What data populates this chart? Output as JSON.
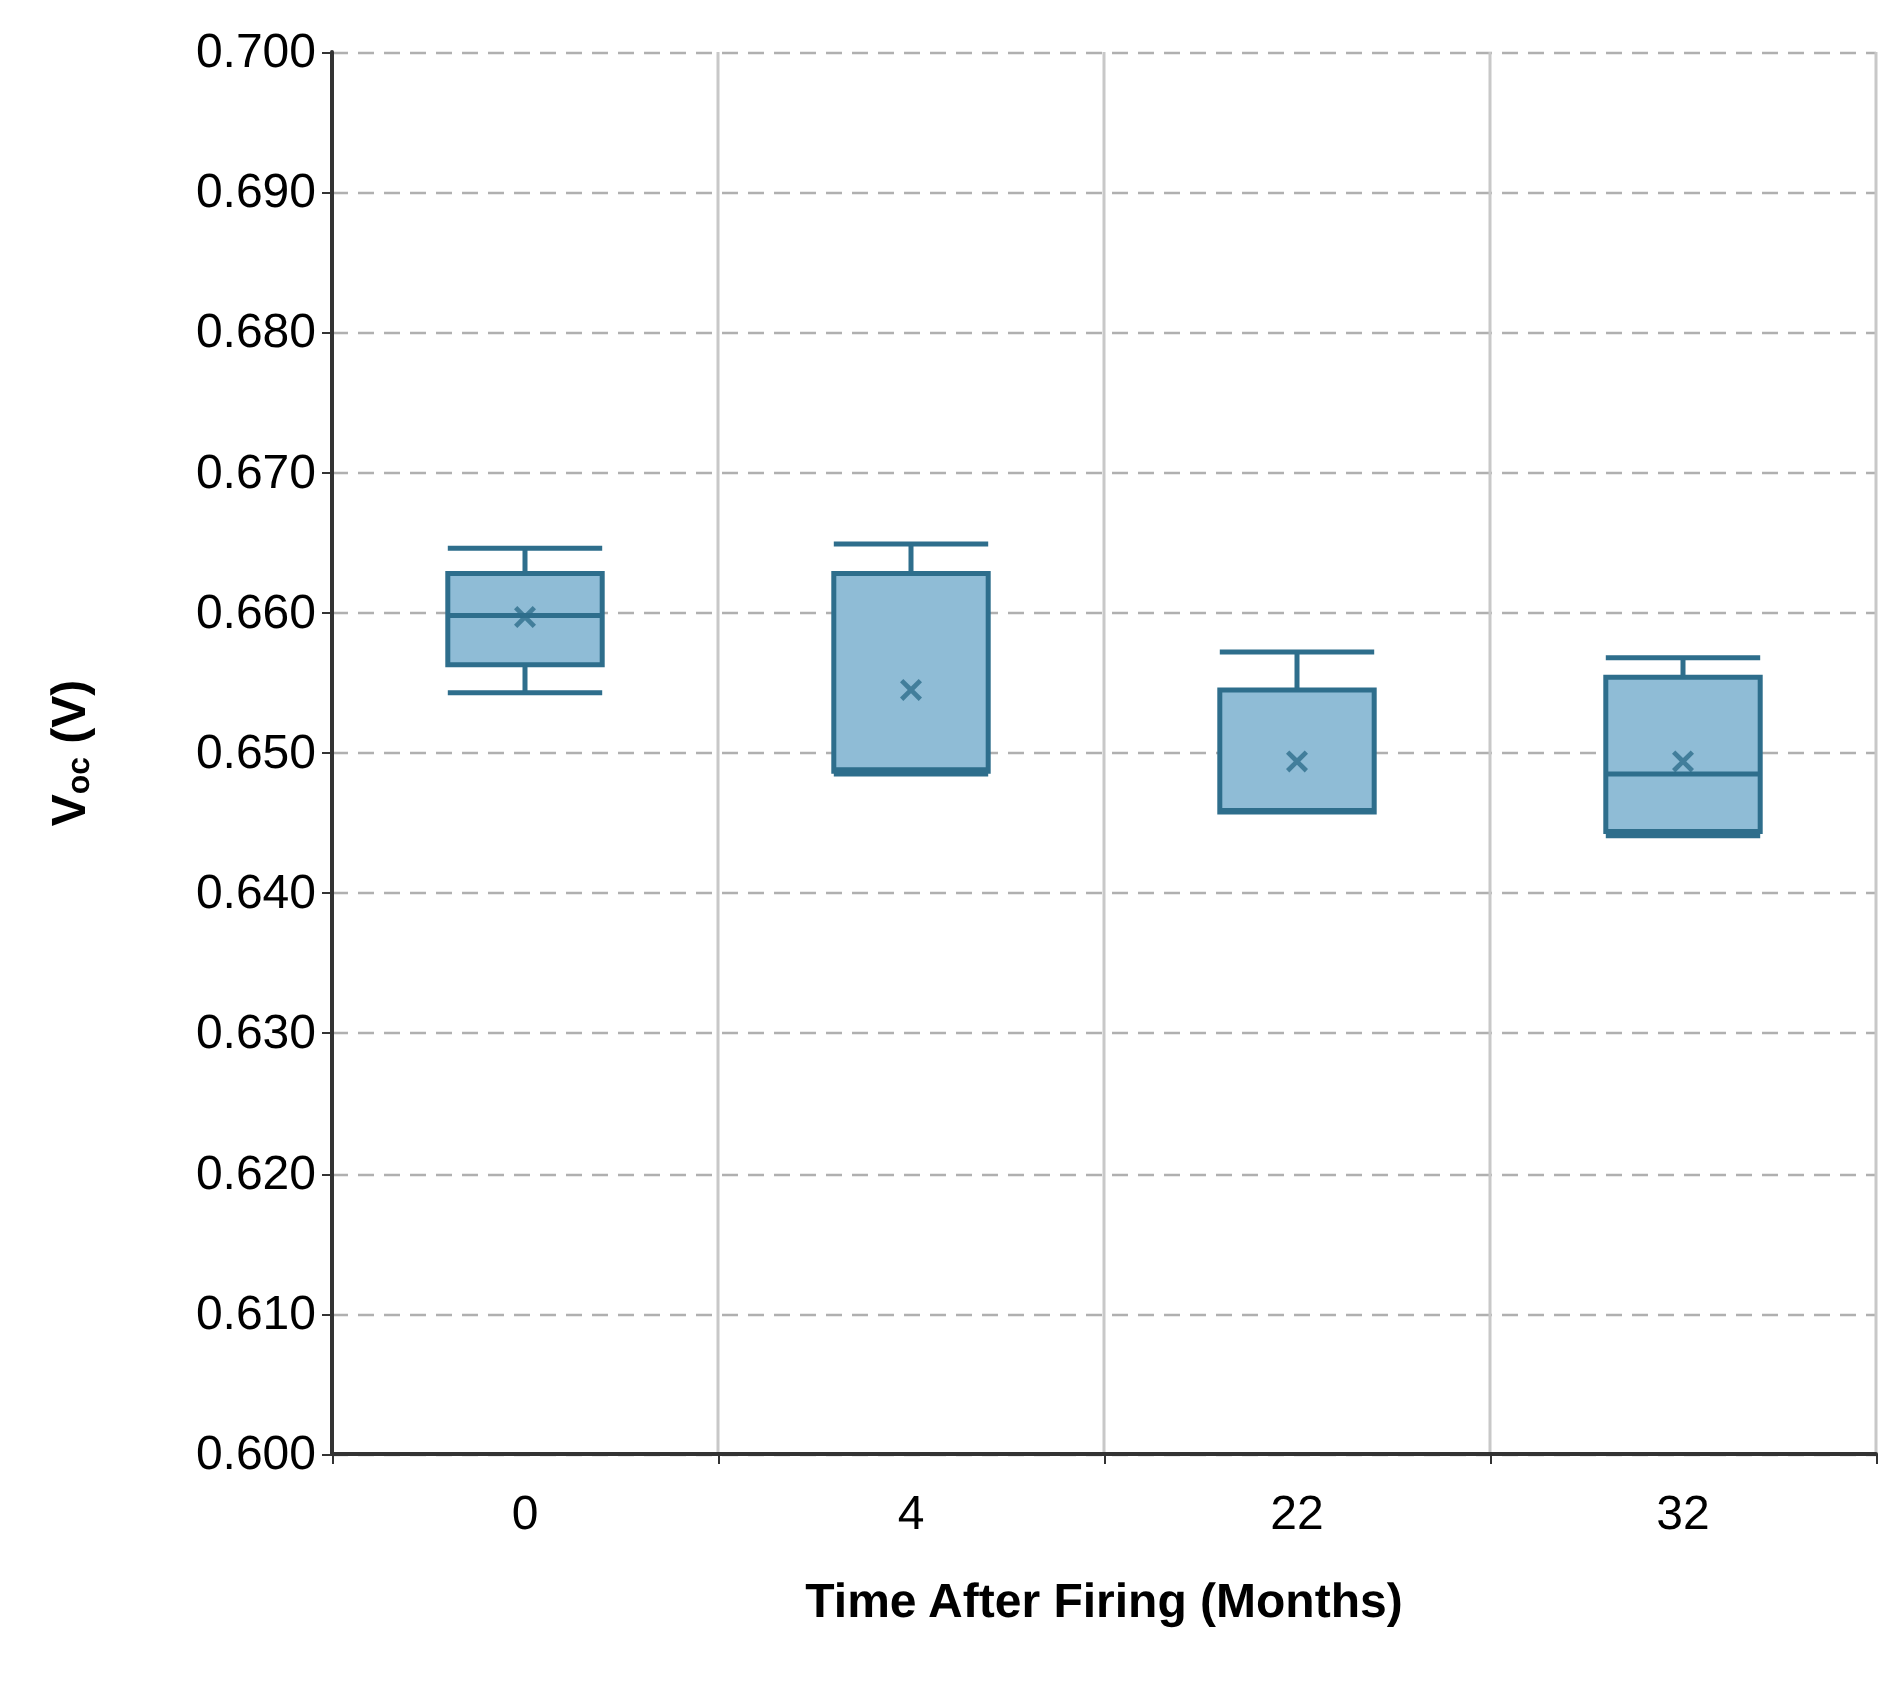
{
  "chart_data": {
    "type": "box",
    "xlabel": "Time After Firing (Months)",
    "ylabel": "V$_{oc}$ (V)",
    "categories": [
      "0",
      "4",
      "22",
      "32"
    ],
    "boxes": [
      {
        "low": 0.6543,
        "q1": 0.6563,
        "median": 0.6598,
        "q3": 0.6628,
        "high": 0.6646,
        "mean": 0.6597
      },
      {
        "low": 0.6485,
        "q1": 0.6487,
        "median": 0.6488,
        "q3": 0.6628,
        "high": 0.6649,
        "mean": 0.6545
      },
      {
        "low": 0.6458,
        "q1": 0.6458,
        "median": 0.6459,
        "q3": 0.6545,
        "high": 0.6572,
        "mean": 0.6494
      },
      {
        "low": 0.6441,
        "q1": 0.6444,
        "median": 0.6485,
        "q3": 0.6554,
        "high": 0.6568,
        "mean": 0.6494
      }
    ],
    "color": "#8fbcd6",
    "marker": "cross",
    "ylim": [
      0.6,
      0.7
    ],
    "yticks": [
      {
        "value": 0.6,
        "label": "0.600"
      },
      {
        "value": 0.61,
        "label": "0.610"
      },
      {
        "value": 0.62,
        "label": "0.620"
      },
      {
        "value": 0.63,
        "label": "0.630"
      },
      {
        "value": 0.64,
        "label": "0.640"
      },
      {
        "value": 0.65,
        "label": "0.650"
      },
      {
        "value": 0.66,
        "label": "0.660"
      },
      {
        "value": 0.67,
        "label": "0.670"
      },
      {
        "value": 0.68,
        "label": "0.680"
      },
      {
        "value": 0.69,
        "label": "0.690"
      },
      {
        "value": 0.7,
        "label": "0.700"
      }
    ],
    "grid": true
  }
}
